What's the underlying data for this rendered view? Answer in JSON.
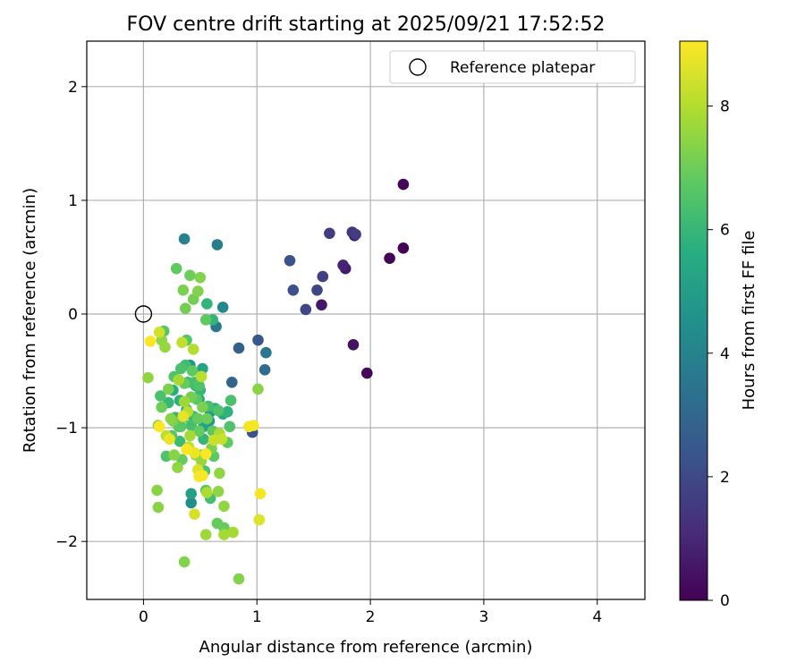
{
  "chart_data": {
    "type": "scatter",
    "title": "FOV centre drift starting at 2025/09/21 17:52:52",
    "xlabel": "Angular distance from reference (arcmin)",
    "ylabel": "Rotation from reference (arcmin)",
    "xlim": [
      -0.5,
      4.42
    ],
    "ylim": [
      -2.51,
      2.4
    ],
    "xticks": [
      0,
      1,
      2,
      3,
      4
    ],
    "yticks": [
      -2,
      -1,
      0,
      1,
      2
    ],
    "xtick_labels": [
      "0",
      "1",
      "2",
      "3",
      "4"
    ],
    "ytick_labels": [
      "−2",
      "−1",
      "0",
      "1",
      "2"
    ],
    "grid": true,
    "legend": {
      "position": "top-right",
      "entries": [
        "Reference platepar"
      ]
    },
    "reference_point": {
      "name": "Reference platepar",
      "x": 0,
      "y": 0
    },
    "colorbar": {
      "label": "Hours from first FF file",
      "colormap": "viridis",
      "range": [
        0,
        9.05
      ],
      "ticks": [
        0,
        2,
        4,
        6,
        8
      ],
      "tick_labels": [
        "0",
        "2",
        "4",
        "6",
        "8"
      ]
    },
    "series": [
      {
        "name": "FOV centre drift",
        "points": [
          [
            2.29,
            1.14,
            0.1
          ],
          [
            2.29,
            0.58,
            0.1
          ],
          [
            2.17,
            0.49,
            0.1
          ],
          [
            1.97,
            -0.52,
            0.2
          ],
          [
            1.85,
            -0.27,
            0.4
          ],
          [
            1.86,
            0.69,
            0.4
          ],
          [
            1.78,
            0.4,
            0.6
          ],
          [
            1.76,
            0.43,
            0.9
          ],
          [
            1.57,
            0.08,
            0.6
          ],
          [
            1.84,
            0.72,
            1.4
          ],
          [
            1.87,
            0.7,
            1.6
          ],
          [
            1.64,
            0.71,
            1.6
          ],
          [
            1.58,
            0.33,
            1.7
          ],
          [
            1.53,
            0.21,
            1.9
          ],
          [
            1.43,
            0.04,
            1.9
          ],
          [
            1.32,
            0.21,
            2.2
          ],
          [
            1.29,
            0.47,
            2.3
          ],
          [
            0.96,
            -1.04,
            2.3
          ],
          [
            1.01,
            -0.23,
            2.4
          ],
          [
            0.84,
            -0.3,
            2.8
          ],
          [
            0.78,
            -0.6,
            2.9
          ],
          [
            1.07,
            -0.49,
            3.1
          ],
          [
            1.08,
            -0.34,
            3.6
          ],
          [
            0.64,
            -0.11,
            3.6
          ],
          [
            0.65,
            0.61,
            3.8
          ],
          [
            0.36,
            0.66,
            3.9
          ],
          [
            0.7,
            0.06,
            4.2
          ],
          [
            0.42,
            -1.66,
            4.4
          ],
          [
            0.59,
            -0.86,
            4.6
          ],
          [
            0.41,
            -0.45,
            4.7
          ],
          [
            0.58,
            -0.94,
            4.9
          ],
          [
            0.42,
            -1.58,
            5.1
          ],
          [
            0.52,
            -0.48,
            5.3
          ],
          [
            0.53,
            -0.99,
            5.3
          ],
          [
            0.49,
            -0.75,
            5.4
          ],
          [
            0.7,
            -0.88,
            5.5
          ],
          [
            0.38,
            -0.84,
            5.6
          ],
          [
            0.26,
            -0.67,
            5.6
          ],
          [
            0.63,
            -0.83,
            5.7
          ],
          [
            0.32,
            -0.76,
            5.7
          ],
          [
            0.74,
            -0.86,
            5.8
          ],
          [
            0.56,
            0.09,
            5.9
          ],
          [
            0.61,
            -0.05,
            5.9
          ],
          [
            0.28,
            -0.91,
            5.9
          ],
          [
            0.46,
            -0.63,
            6.0
          ],
          [
            0.53,
            -1.1,
            6.0
          ],
          [
            0.5,
            -0.67,
            6.0
          ],
          [
            0.22,
            -0.78,
            6.0
          ],
          [
            0.39,
            -0.6,
            6.1
          ],
          [
            0.32,
            -1.12,
            6.1
          ],
          [
            0.44,
            -0.9,
            6.1
          ],
          [
            0.37,
            -0.45,
            6.2
          ],
          [
            0.35,
            -0.91,
            6.2
          ],
          [
            0.45,
            -0.6,
            6.3
          ],
          [
            0.59,
            -1.62,
            6.3
          ],
          [
            0.57,
            -0.81,
            6.3
          ],
          [
            0.42,
            -0.98,
            6.3
          ],
          [
            0.77,
            -0.76,
            6.4
          ],
          [
            0.33,
            -0.48,
            6.4
          ],
          [
            0.15,
            -0.72,
            6.4
          ],
          [
            0.76,
            -0.99,
            6.5
          ],
          [
            0.2,
            -1.25,
            6.5
          ],
          [
            0.27,
            -0.55,
            6.5
          ],
          [
            0.66,
            -0.85,
            6.5
          ],
          [
            0.54,
            -1.38,
            6.5
          ],
          [
            0.49,
            -0.63,
            6.5
          ],
          [
            0.18,
            -0.15,
            6.6
          ],
          [
            0.31,
            -0.99,
            6.6
          ],
          [
            0.38,
            -0.23,
            6.6
          ],
          [
            0.25,
            -1.07,
            6.6
          ],
          [
            0.62,
            -1.25,
            6.7
          ],
          [
            0.47,
            -0.75,
            6.7
          ],
          [
            0.55,
            -1.55,
            6.7
          ],
          [
            0.33,
            -0.99,
            6.7
          ],
          [
            0.29,
            0.4,
            6.8
          ],
          [
            0.55,
            -0.05,
            6.8
          ],
          [
            0.43,
            -0.5,
            6.8
          ],
          [
            0.74,
            -1.13,
            6.8
          ],
          [
            0.61,
            -1.03,
            6.8
          ],
          [
            0.34,
            -1.28,
            6.9
          ],
          [
            0.48,
            -0.92,
            6.9
          ],
          [
            0.36,
            -0.61,
            6.9
          ],
          [
            0.71,
            -1.88,
            6.9
          ],
          [
            0.65,
            -1.84,
            6.9
          ],
          [
            0.49,
            -1.03,
            6.9
          ],
          [
            0.51,
            -1.24,
            7.0
          ],
          [
            0.56,
            -0.92,
            7.0
          ],
          [
            0.16,
            -0.82,
            7.0
          ],
          [
            0.41,
            0.34,
            7.0
          ],
          [
            0.42,
            -0.73,
            7.1
          ],
          [
            0.44,
            0.13,
            7.1
          ],
          [
            0.37,
            0.05,
            7.1
          ],
          [
            0.52,
            -0.82,
            7.2
          ],
          [
            0.22,
            -0.66,
            7.2
          ],
          [
            0.26,
            -0.94,
            7.2
          ],
          [
            0.35,
            0.21,
            7.2
          ],
          [
            0.6,
            -1.18,
            7.2
          ],
          [
            0.84,
            -2.33,
            7.3
          ],
          [
            0.36,
            -2.18,
            7.3
          ],
          [
            0.48,
            0.2,
            7.3
          ],
          [
            0.5,
            0.32,
            7.3
          ],
          [
            0.13,
            -0.98,
            7.4
          ],
          [
            0.24,
            -0.92,
            7.4
          ],
          [
            0.27,
            -1.24,
            7.4
          ],
          [
            1.01,
            -0.66,
            7.4
          ],
          [
            0.12,
            -1.55,
            7.4
          ],
          [
            0.13,
            -1.7,
            7.4
          ],
          [
            0.3,
            -1.35,
            7.5
          ],
          [
            0.66,
            -1.56,
            7.5
          ],
          [
            0.67,
            -1.4,
            7.5
          ],
          [
            0.71,
            -1.69,
            7.5
          ],
          [
            0.04,
            -0.56,
            7.5
          ],
          [
            0.16,
            -0.23,
            7.5
          ],
          [
            0.51,
            -1.29,
            7.6
          ],
          [
            0.19,
            -0.29,
            7.6
          ],
          [
            0.46,
            -1.24,
            7.6
          ],
          [
            0.55,
            -1.94,
            7.7
          ],
          [
            0.36,
            -0.77,
            7.7
          ],
          [
            0.31,
            -0.58,
            7.8
          ],
          [
            0.71,
            -1.94,
            7.8
          ],
          [
            0.79,
            -1.92,
            7.8
          ],
          [
            0.41,
            -1.07,
            7.8
          ],
          [
            0.56,
            -1.57,
            7.9
          ],
          [
            0.67,
            -1.05,
            7.9
          ],
          [
            0.44,
            -0.31,
            8.0
          ],
          [
            0.39,
            -0.86,
            8.1
          ],
          [
            0.51,
            -0.55,
            8.1
          ],
          [
            0.2,
            -1.07,
            8.1
          ],
          [
            0.34,
            -0.25,
            8.2
          ],
          [
            0.4,
            -1.17,
            8.2
          ],
          [
            0.69,
            -1.1,
            8.3
          ],
          [
            0.62,
            -1.11,
            8.3
          ],
          [
            0.14,
            -0.16,
            8.4
          ],
          [
            0.45,
            -1.76,
            8.5
          ],
          [
            1.02,
            -1.81,
            8.6
          ],
          [
            0.48,
            -1.37,
            8.6
          ],
          [
            0.35,
            -0.9,
            8.7
          ],
          [
            0.45,
            -1.22,
            8.8
          ],
          [
            0.23,
            -1.1,
            8.8
          ],
          [
            1.03,
            -1.58,
            8.9
          ],
          [
            0.93,
            -0.99,
            8.9
          ],
          [
            0.97,
            -0.98,
            8.9
          ],
          [
            0.14,
            -0.99,
            9.0
          ],
          [
            0.06,
            -0.24,
            9.0
          ],
          [
            0.52,
            -1.42,
            9.0
          ],
          [
            0.55,
            -1.23,
            9.0
          ],
          [
            0.49,
            -1.43,
            9.0
          ],
          [
            0.38,
            -1.19,
            9.0
          ]
        ]
      }
    ]
  }
}
